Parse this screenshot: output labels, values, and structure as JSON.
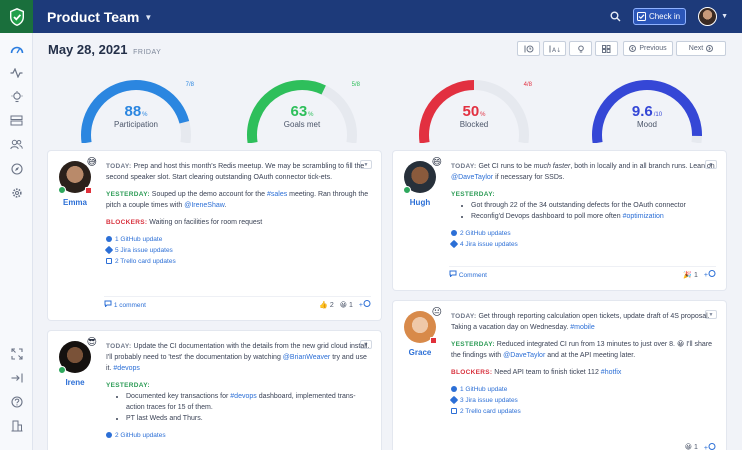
{
  "header": {
    "team": "Product Team",
    "checkin_label": "Check in"
  },
  "main": {
    "date": "May 28, 2021",
    "day": "FRIDAY",
    "toolbar": {
      "previous_label": "Previous",
      "next_label": "Next"
    }
  },
  "gauges": [
    {
      "value": "88",
      "unit": "%",
      "label": "Participation",
      "fraction": "7/8",
      "level": 0.88,
      "color": "#2b86e0"
    },
    {
      "value": "63",
      "unit": "%",
      "label": "Goals met",
      "fraction": "5/8",
      "level": 0.63,
      "color": "#2ebf5b"
    },
    {
      "value": "50",
      "unit": "%",
      "label": "Blocked",
      "fraction": "4/8",
      "level": 0.5,
      "color": "#e23040"
    },
    {
      "value": "9.6",
      "unit": "/10",
      "label": "Mood",
      "fraction": "",
      "level": 0.96,
      "color": "#3547d6"
    }
  ],
  "cards": {
    "emma": {
      "name": "Emma",
      "today_label": "TODAY:",
      "today_text": "Prep and host this month's Redis meetup. We may be scrambling to fill the second speaker slot. Start clearing outstanding OAuth connector tick-ets.",
      "yesterday_label": "YESTERDAY:",
      "yesterday_pre": "Souped up the demo account for the",
      "yesterday_tag": "#sales",
      "yesterday_mid": "meeting. Ran through the pitch a couple times with",
      "yesterday_mention": "@IreneShaw",
      "yesterday_end": ".",
      "blockers_label": "BLOCKERS:",
      "blockers_text": "Waiting on facilities for room request",
      "links": [
        "1 GitHub update",
        "5 Jira issue updates",
        "2 Trello card updates"
      ],
      "comment": "1 comment",
      "reactions": [
        "2",
        "1"
      ]
    },
    "hugh": {
      "name": "Hugh",
      "today_label": "TODAY:",
      "today_pre": "Get CI runs to be",
      "today_em": "much faster",
      "today_mid": ", both in locally and in all branch runs. Lean on",
      "today_mention": "@DaveTaylor",
      "today_end": "if necessary for SSDs.",
      "yesterday_label": "YESTERDAY:",
      "bullet1": "Got through 22 of the 34 outstanding defects for the OAuth connector",
      "bullet2_pre": "Reconfig'd Devops dashboard to poll more often",
      "bullet2_tag": "#optimization",
      "links": [
        "2 GitHub updates",
        "4 Jira issue updates"
      ],
      "comment": "Comment",
      "reactions": [
        "1"
      ]
    },
    "irene": {
      "name": "Irene",
      "today_label": "TODAY:",
      "today_pre": "Update the CI documentation with the details from the new grid cloud install. I'll probably need to 'test' the documentation by watching",
      "today_mention": "@BrianWeaver",
      "today_mid": "try and use it.",
      "today_tag": "#devops",
      "yesterday_label": "YESTERDAY:",
      "bullet1_pre": "Documented key transactions for",
      "bullet1_tag": "#devops",
      "bullet1_end": "dashboard, implemented trans-action traces for 15 of them.",
      "bullet2": "PT last Weds and Thurs.",
      "links": [
        "2 GitHub updates"
      ]
    },
    "grace": {
      "name": "Grace",
      "today_label": "TODAY:",
      "today_pre": "Get through reporting calculation open tickets, update draft of 4S proposal. Taking a vacation day on Wednesday.",
      "today_tag": "#mobile",
      "yesterday_label": "YESTERDAY:",
      "yesterday_pre": "Reduced integrated CI run from 13 minutes to just over 8.",
      "yesterday_mid": "I'll share the findings with",
      "yesterday_mention": "@DaveTaylor",
      "yesterday_end": "and at the API meeting later.",
      "blockers_label": "BLOCKERS:",
      "blockers_pre": "Need API team to finish ticket 112",
      "blockers_tag": "#hotfix",
      "links": [
        "1 GitHub update",
        "3 Jira issue updates",
        "2 Trello card updates"
      ],
      "reactions": [
        "1"
      ]
    }
  }
}
